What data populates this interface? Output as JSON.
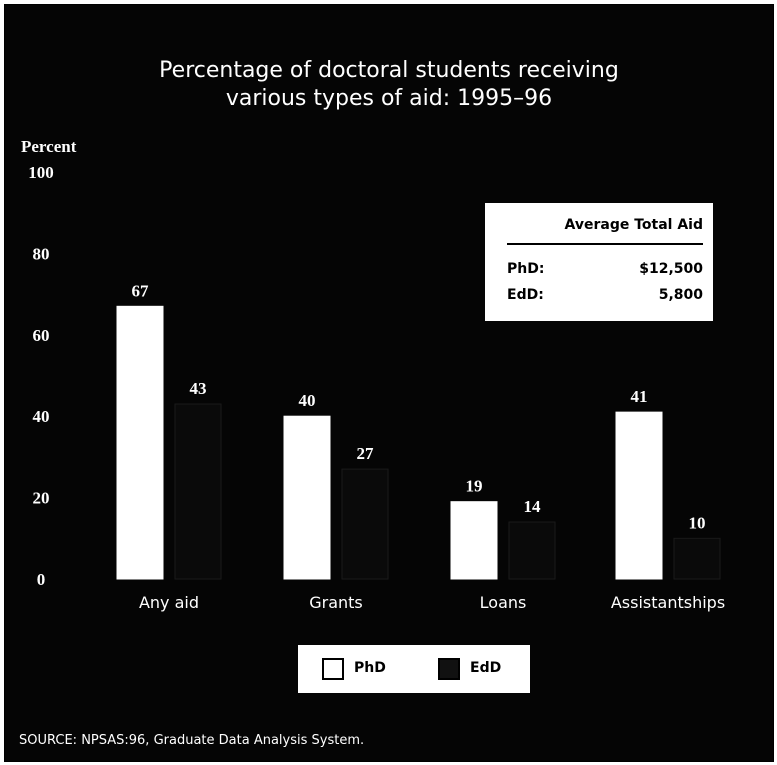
{
  "chart_data": {
    "type": "bar",
    "title": "Percentage of doctoral students receiving various types of aid:  1995–96",
    "title_lines": [
      "Percentage of doctoral students receiving",
      "various types of aid:  1995–96"
    ],
    "xlabel": "",
    "ylabel": "Percent",
    "ylim": [
      0,
      100
    ],
    "yticks": [
      0,
      20,
      40,
      60,
      80,
      100
    ],
    "grid": false,
    "categories": [
      "Any aid",
      "Grants",
      "Loans",
      "Assistantships"
    ],
    "series": [
      {
        "name": "PhD",
        "values": [
          67,
          40,
          19,
          41
        ],
        "color": "#ffffff"
      },
      {
        "name": "EdD",
        "values": [
          43,
          27,
          14,
          10
        ],
        "color": "#0a0a0a"
      }
    ],
    "legend": {
      "placement": "bottom-center",
      "entries": [
        "PhD",
        "EdD"
      ]
    },
    "inset_table": {
      "title": "Average Total Aid",
      "rows": [
        {
          "label": "PhD:",
          "value": "$12,500"
        },
        {
          "label": "EdD:",
          "value": "5,800"
        }
      ]
    },
    "source": "SOURCE:  NPSAS:96, Graduate Data Analysis System."
  },
  "colors": {
    "background": "#050505",
    "phd": "#ffffff",
    "edd": "#0a0a0a",
    "text": "#ffffff"
  }
}
